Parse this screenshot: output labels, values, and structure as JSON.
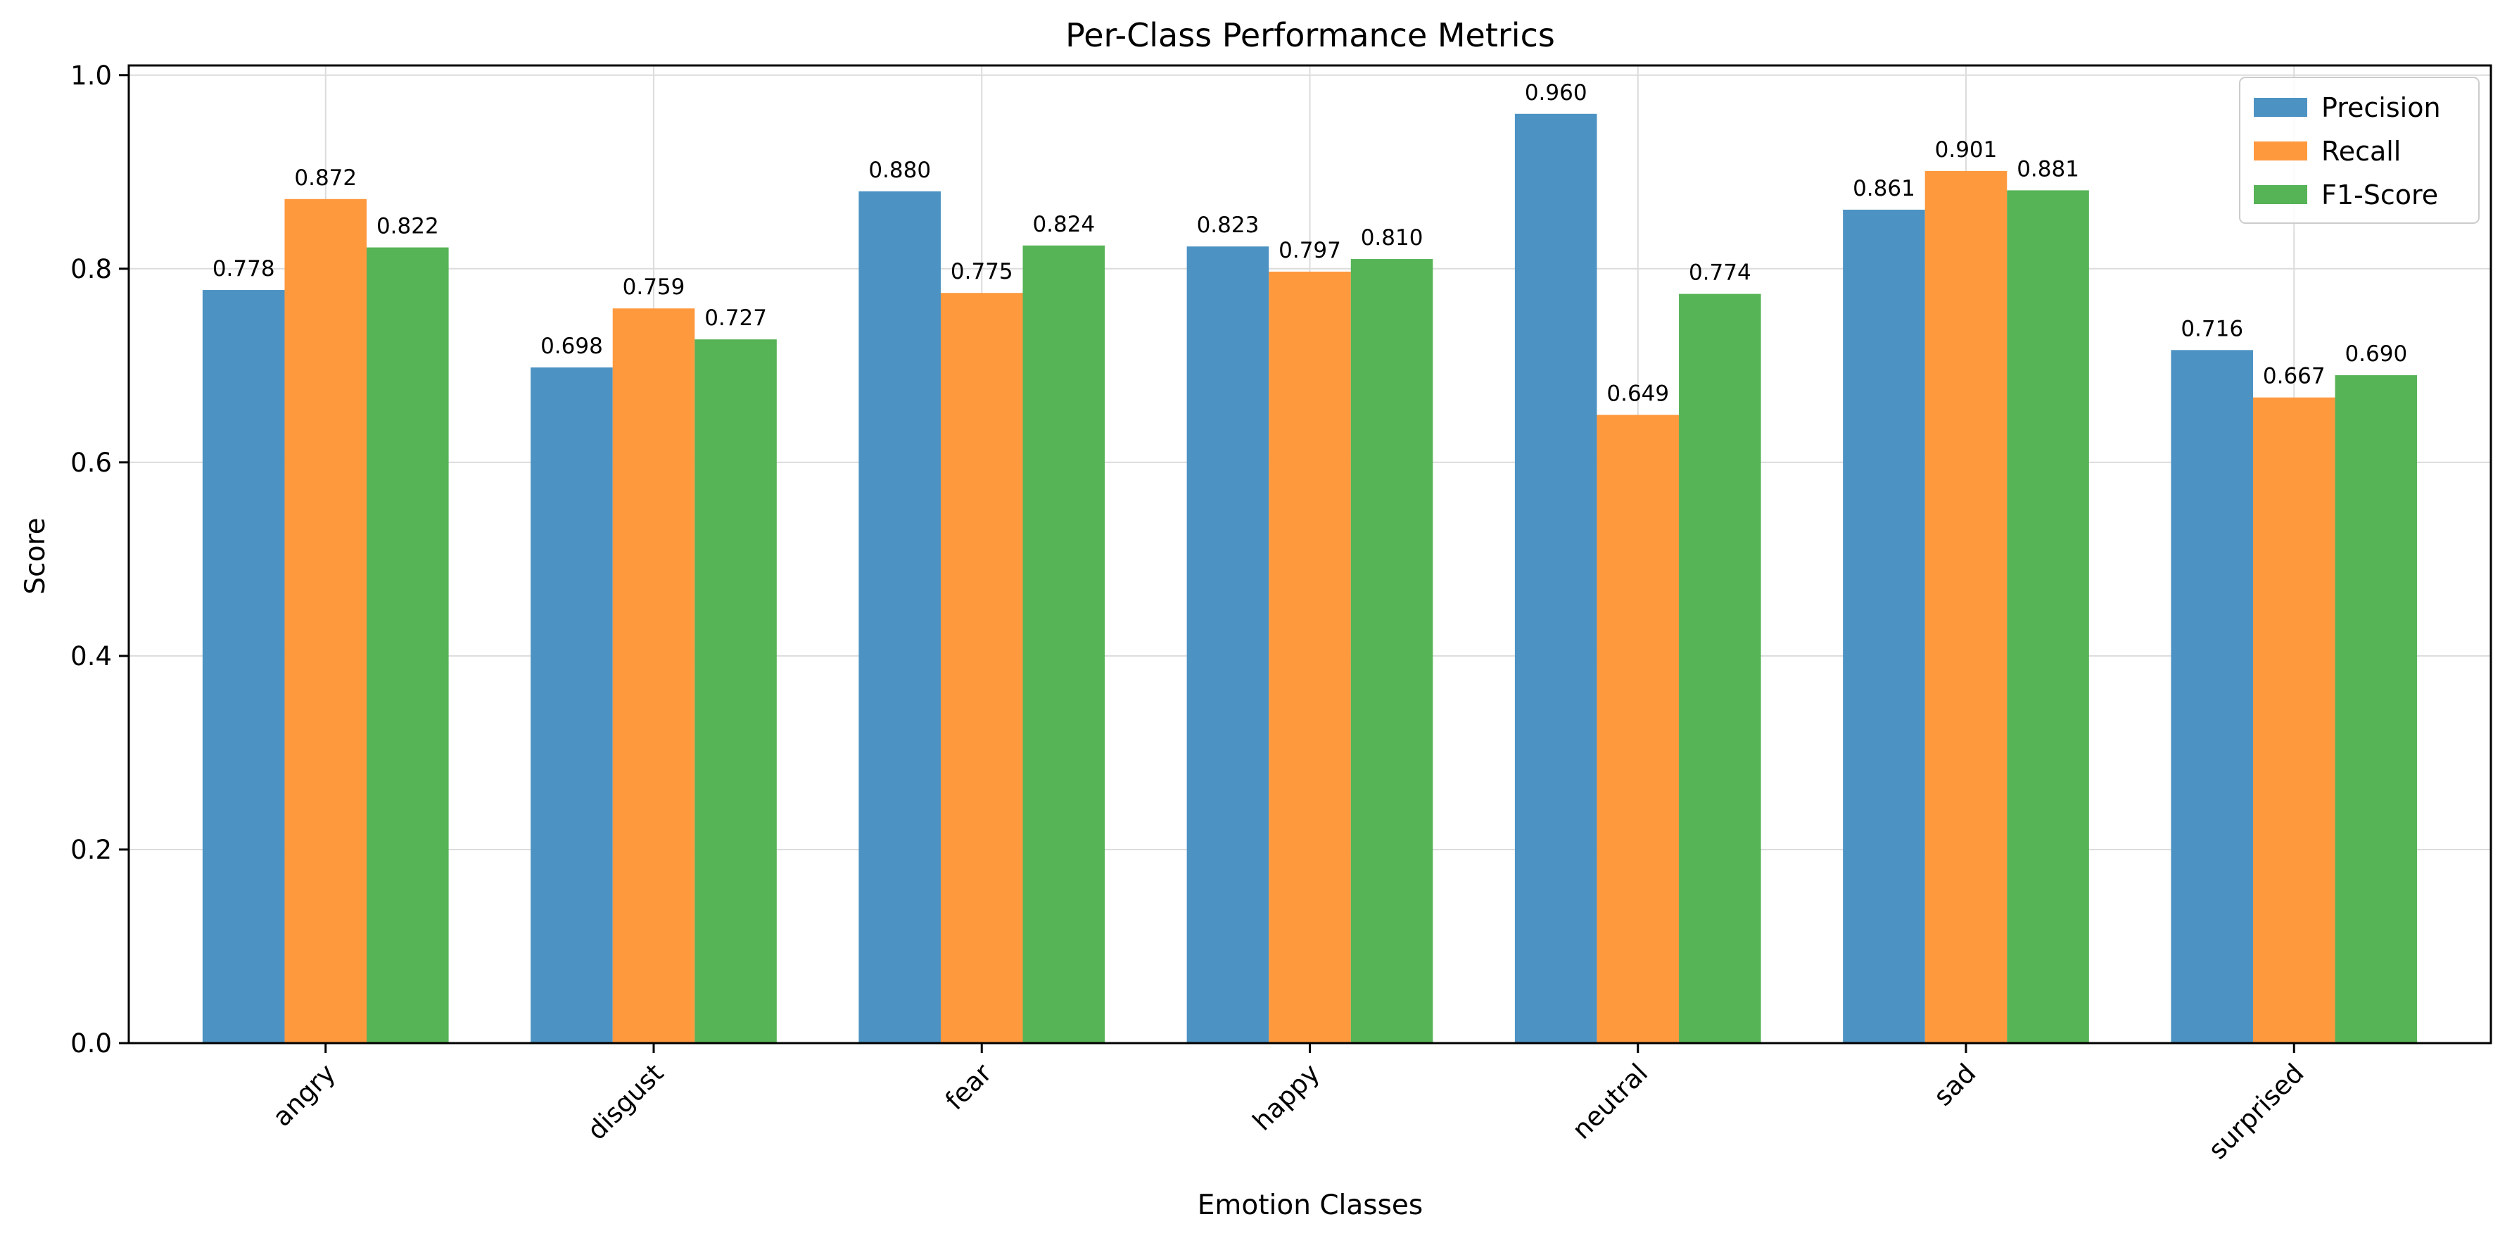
{
  "chart_data": {
    "type": "bar",
    "title": "Per-Class Performance Metrics",
    "xlabel": "Emotion Classes",
    "ylabel": "Score",
    "ylim": [
      0,
      1.0
    ],
    "yticks": [
      "0.0",
      "0.2",
      "0.4",
      "0.6",
      "0.8",
      "1.0"
    ],
    "grid": true,
    "legend_position": "top-right",
    "categories": [
      "angry",
      "disgust",
      "fear",
      "happy",
      "neutral",
      "sad",
      "surprised"
    ],
    "series": [
      {
        "name": "Precision",
        "color": "#4c92c3",
        "values": [
          0.778,
          0.698,
          0.88,
          0.823,
          0.96,
          0.861,
          0.716
        ],
        "labels": [
          "0.778",
          "0.698",
          "0.880",
          "0.823",
          "0.960",
          "0.861",
          "0.716"
        ]
      },
      {
        "name": "Recall",
        "color": "#ff993e",
        "values": [
          0.872,
          0.759,
          0.775,
          0.797,
          0.649,
          0.901,
          0.667
        ],
        "labels": [
          "0.872",
          "0.759",
          "0.775",
          "0.797",
          "0.649",
          "0.901",
          "0.667"
        ]
      },
      {
        "name": "F1-Score",
        "color": "#56b356",
        "values": [
          0.822,
          0.727,
          0.824,
          0.81,
          0.774,
          0.881,
          0.69
        ],
        "labels": [
          "0.822",
          "0.727",
          "0.824",
          "0.810",
          "0.774",
          "0.881",
          "0.690"
        ]
      }
    ]
  }
}
